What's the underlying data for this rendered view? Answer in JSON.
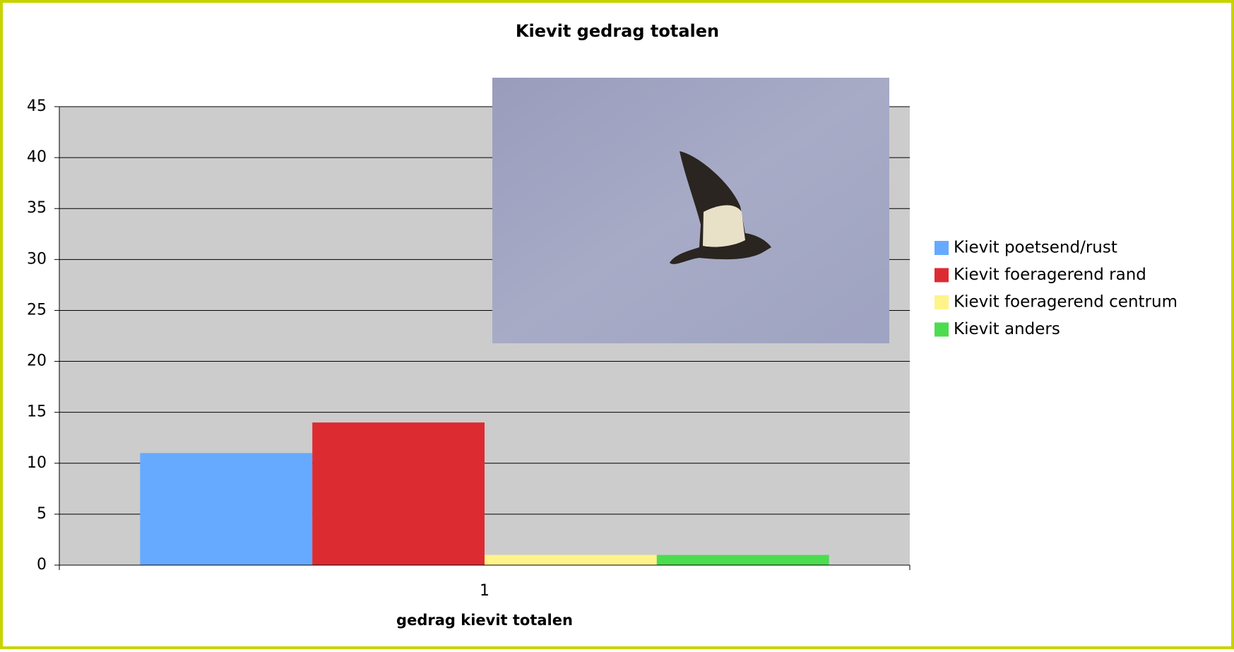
{
  "chart_data": {
    "type": "bar",
    "title": "Kievit gedrag totalen",
    "x_label": "gedrag kievit totalen",
    "categories": [
      "1"
    ],
    "series": [
      {
        "name": "Kievit poetsend/rust",
        "color": "#66aaff",
        "values": [
          11
        ]
      },
      {
        "name": "Kievit foeragerend rand",
        "color": "#dd2b32",
        "values": [
          14
        ]
      },
      {
        "name": "Kievit foeragerend centrum",
        "color": "#fff38a",
        "values": [
          1
        ]
      },
      {
        "name": "Kievit anders",
        "color": "#4cdc50",
        "values": [
          1
        ]
      }
    ],
    "ylim": [
      0,
      45
    ],
    "yticks": [
      0,
      5,
      10,
      15,
      20,
      25,
      30,
      35,
      40,
      45
    ],
    "grid": true,
    "legend": "right"
  }
}
